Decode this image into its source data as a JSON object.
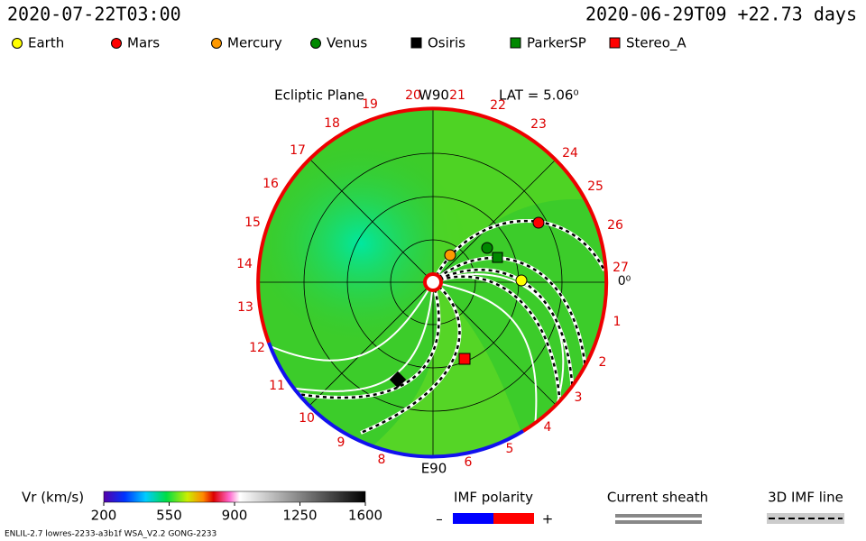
{
  "header": {
    "time": "2020-07-22T03:00",
    "reference": "2020-06-29T09 +22.73 days"
  },
  "legend": [
    {
      "name": "Earth",
      "color": "#ffff00",
      "shape": "circle"
    },
    {
      "name": "Mars",
      "color": "#ff0000",
      "shape": "circle"
    },
    {
      "name": "Mercury",
      "color": "#ff9900",
      "shape": "circle"
    },
    {
      "name": "Venus",
      "color": "#008800",
      "shape": "circle"
    },
    {
      "name": "Osiris",
      "color": "#000000",
      "shape": "square"
    },
    {
      "name": "ParkerSP",
      "color": "#008800",
      "shape": "square"
    },
    {
      "name": "Stereo_A",
      "color": "#ff0000",
      "shape": "square"
    }
  ],
  "plot": {
    "plane": "Ecliptic Plane",
    "top_label": "W90",
    "bottom_label": "E90",
    "latitude": "LAT = 5.06⁰",
    "day_labels": [
      "0⁰",
      "1",
      "2",
      "3",
      "4",
      "5",
      "6",
      "8",
      "9",
      "10",
      "11",
      "12",
      "13",
      "14",
      "15",
      "16",
      "17",
      "18",
      "19",
      "20",
      "21",
      "22",
      "23",
      "24",
      "25",
      "26",
      "27"
    ]
  },
  "colorbar": {
    "label": "Vr (km/s)",
    "range": [
      200,
      1600
    ],
    "ticks": [
      200,
      550,
      900,
      1250,
      1600
    ]
  },
  "imf": {
    "title": "IMF polarity",
    "minus": "–",
    "plus": "+"
  },
  "sheath": {
    "title": "Current sheath"
  },
  "imf_line": {
    "title": "3D IMF line"
  },
  "footer": "ENLIL-2.7 lowres-2233-a3b1f WSA_V2.2 GONG-2233"
}
